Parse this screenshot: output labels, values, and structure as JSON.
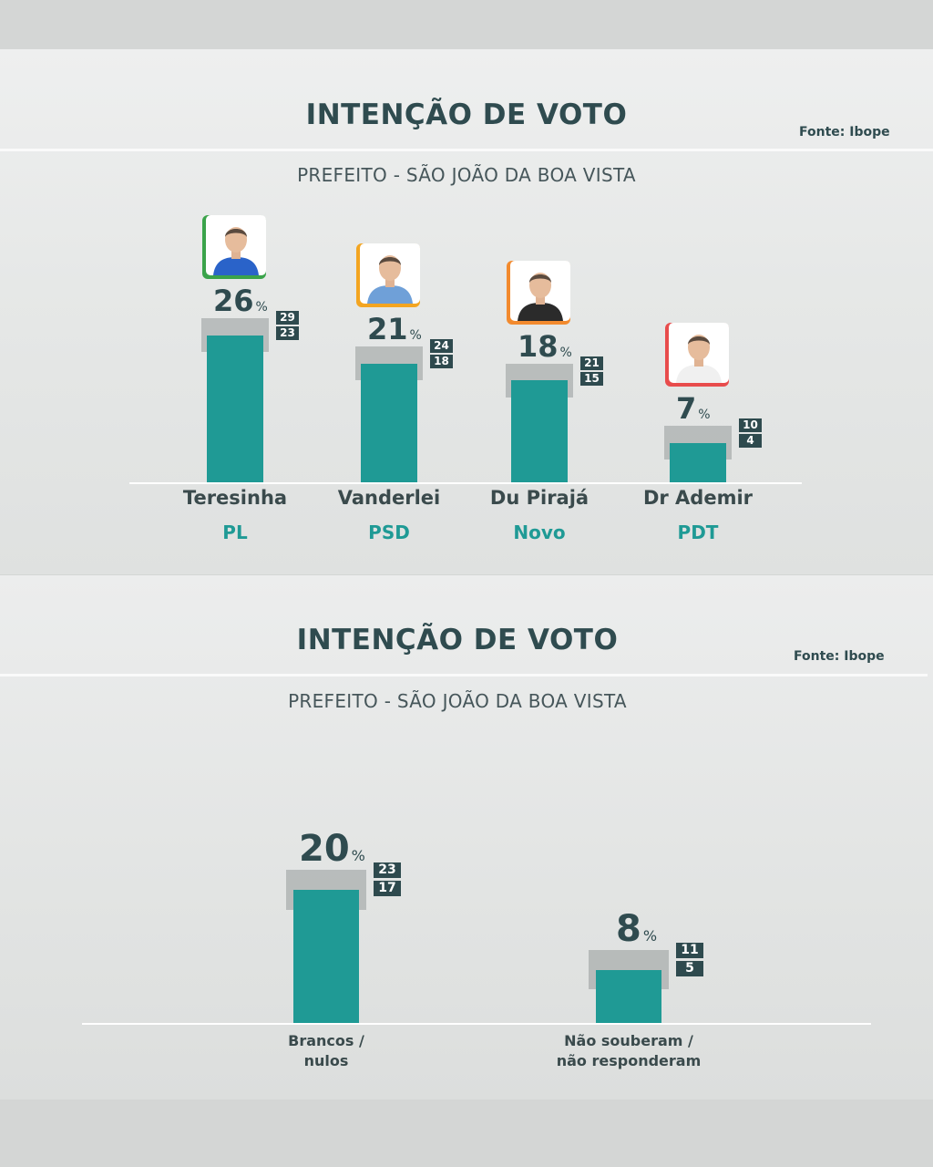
{
  "panels": [
    {
      "title": "INTENÇÃO DE VOTO",
      "source": "Fonte: Ibope",
      "subtitle": "PREFEITO - SÃO JOÃO DA BOA VISTA"
    },
    {
      "title": "INTENÇÃO DE VOTO",
      "source": "Fonte: Ibope",
      "subtitle": "PREFEITO - SÃO JOÃO DA BOA VISTA"
    }
  ],
  "colors": {
    "bar": "#1f9a95",
    "range_box": "#2e4a4e",
    "title": "#2f4b4f",
    "party": "#1f9a95",
    "party_accent": {
      "PL": "#3aa34a",
      "PSD": "#f3a521",
      "Novo": "#f28a2e",
      "PDT": "#e84c4c"
    }
  },
  "chart_data": [
    {
      "type": "bar",
      "title": "INTENÇÃO DE VOTO",
      "subtitle": "PREFEITO - SÃO JOÃO DA BOA VISTA",
      "categories": [
        "Teresinha",
        "Vanderlei",
        "Du Pirajá",
        "Dr Ademir"
      ],
      "parties": [
        "PL",
        "PSD",
        "Novo",
        "PDT"
      ],
      "values": [
        26,
        21,
        18,
        7
      ],
      "value_labels": [
        "26",
        "21",
        "18",
        "7"
      ],
      "unit": "%",
      "range_high": [
        29,
        24,
        21,
        10
      ],
      "range_low": [
        23,
        18,
        15,
        4
      ],
      "photo_icons": [
        "candidate-photo-teresinha",
        "candidate-photo-vanderlei",
        "candidate-photo-du-piraja",
        "candidate-photo-dr-ademir"
      ]
    },
    {
      "type": "bar",
      "title": "INTENÇÃO DE VOTO",
      "subtitle": "PREFEITO - SÃO JOÃO DA BOA VISTA",
      "categories": [
        [
          "Brancos /",
          "nulos"
        ],
        [
          "Não souberam /",
          "não responderam"
        ]
      ],
      "values": [
        20,
        8
      ],
      "value_labels": [
        "20",
        "8"
      ],
      "unit": "%",
      "range_high": [
        23,
        11
      ],
      "range_low": [
        17,
        5
      ]
    }
  ]
}
